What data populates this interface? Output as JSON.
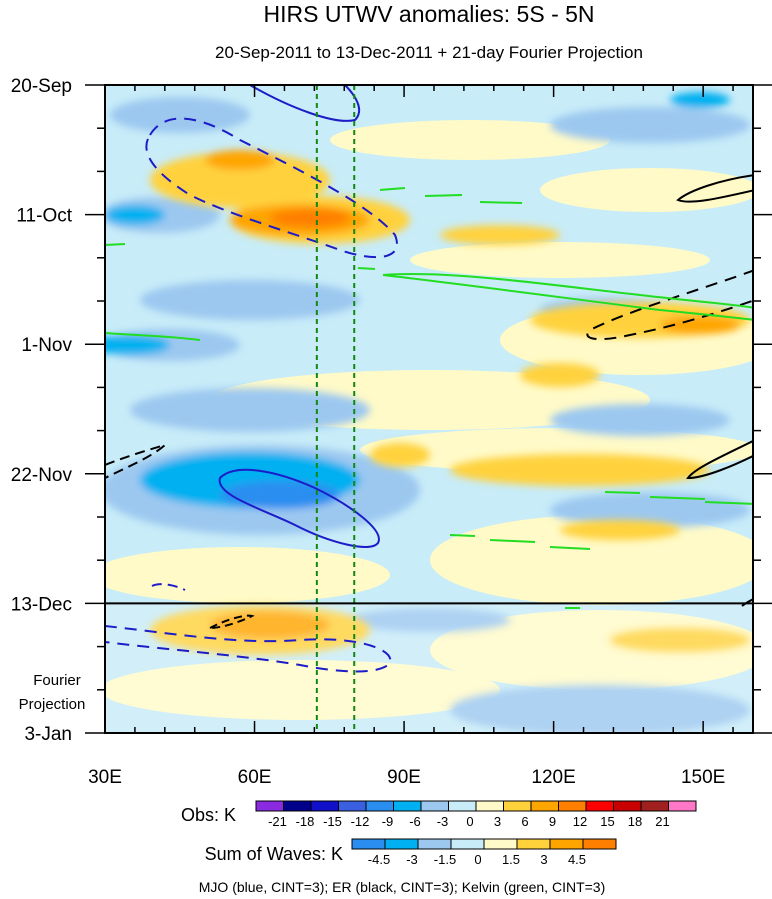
{
  "chart_data": {
    "type": "heatmap",
    "title": "HIRS UTWV anomalies: 5S - 5N",
    "subtitle": "20-Sep-2011 to 13-Dec-2011 + 21-day Fourier Projection",
    "x_ticks": [
      {
        "value": 30,
        "label": "30E"
      },
      {
        "value": 60,
        "label": "60E"
      },
      {
        "value": 90,
        "label": "90E"
      },
      {
        "value": 120,
        "label": "120E"
      },
      {
        "value": 150,
        "label": "150E"
      }
    ],
    "xlim": [
      30,
      160
    ],
    "y_ticks": [
      {
        "value": 0,
        "label": "20-Sep"
      },
      {
        "value": 21,
        "label": "11-Oct"
      },
      {
        "value": 42,
        "label": "1-Nov"
      },
      {
        "value": 63,
        "label": "22-Nov"
      },
      {
        "value": 84,
        "label": "13-Dec"
      },
      {
        "value": 105,
        "label": "3-Jan"
      }
    ],
    "ylim": [
      0,
      105
    ],
    "projection_start_day": 84,
    "projection_label": [
      "Fourier",
      "Projection"
    ],
    "reference_longitudes": [
      72.5,
      80
    ],
    "legend_obs": {
      "title": "Obs: K",
      "labels": [
        "-21",
        "-18",
        "-15",
        "-12",
        "-9",
        "-6",
        "-3",
        "0",
        "3",
        "6",
        "9",
        "12",
        "15",
        "18",
        "21"
      ],
      "colors": [
        "#8a2be2",
        "#00008b",
        "#1010c8",
        "#3a5fe0",
        "#2a8ef0",
        "#00b0f0",
        "#9cc8f0",
        "#c8ecf8",
        "#fffac8",
        "#ffd23c",
        "#ffa500",
        "#ff7f00",
        "#ff0000",
        "#c80000",
        "#a02020",
        "#ff78c8"
      ]
    },
    "legend_waves": {
      "title": "Sum of Waves: K",
      "labels": [
        "-4.5",
        "-3",
        "-1.5",
        "0",
        "1.5",
        "3",
        "4.5"
      ],
      "colors": [
        "#2a8ef0",
        "#00b0f0",
        "#9cc8f0",
        "#c8ecf8",
        "#fffac8",
        "#ffd23c",
        "#ffa500",
        "#ff7f00"
      ]
    },
    "footer": "MJO (blue, CINT=3); ER (black, CINT=3); Kelvin (green, CINT=3)",
    "colors": {
      "mjo": "#1c1cc8",
      "er": "#000000",
      "kelvin": "#22dd22",
      "ref_line": "#118811"
    }
  }
}
